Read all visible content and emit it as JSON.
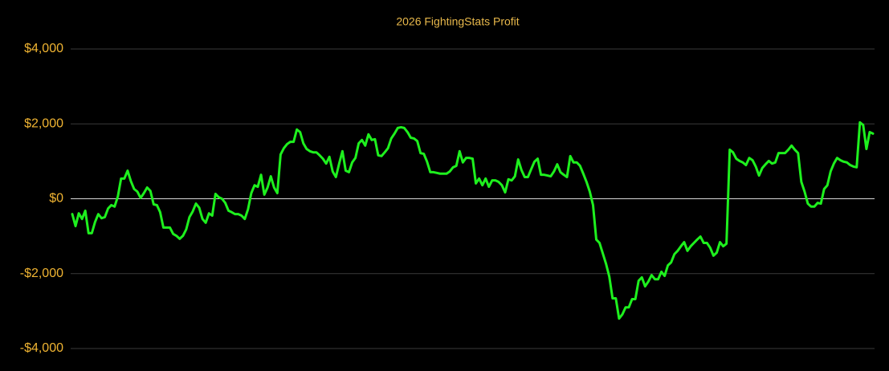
{
  "chart_data": {
    "type": "line",
    "title": "2026 FightingStats Profit",
    "ylim": [
      -4000,
      4000
    ],
    "yticks": [
      {
        "value": 4000,
        "label": "$4,000"
      },
      {
        "value": 2000,
        "label": "$2,000"
      },
      {
        "value": 0,
        "label": "$0"
      },
      {
        "value": -2000,
        "label": "-$2,000"
      },
      {
        "value": -4000,
        "label": "-$4,000"
      }
    ],
    "grid": true,
    "series": [
      {
        "color": "#1ef01e",
        "values": [
          -410,
          -730,
          -390,
          -540,
          -320,
          -920,
          -920,
          -620,
          -410,
          -520,
          -490,
          -260,
          -170,
          -210,
          60,
          540,
          540,
          750,
          470,
          260,
          190,
          20,
          150,
          300,
          210,
          -150,
          -170,
          -360,
          -770,
          -770,
          -770,
          -940,
          -990,
          -1070,
          -990,
          -820,
          -490,
          -340,
          -130,
          -240,
          -540,
          -640,
          -390,
          -450,
          130,
          40,
          0,
          -110,
          -320,
          -360,
          -410,
          -410,
          -450,
          -540,
          -280,
          150,
          360,
          320,
          640,
          110,
          300,
          600,
          300,
          150,
          1180,
          1350,
          1460,
          1520,
          1520,
          1850,
          1780,
          1480,
          1330,
          1270,
          1240,
          1240,
          1160,
          1070,
          940,
          1120,
          730,
          580,
          940,
          1270,
          750,
          710,
          970,
          1090,
          1480,
          1570,
          1420,
          1720,
          1570,
          1590,
          1160,
          1140,
          1240,
          1350,
          1610,
          1740,
          1890,
          1910,
          1890,
          1780,
          1630,
          1610,
          1540,
          1220,
          1200,
          990,
          710,
          710,
          690,
          670,
          670,
          670,
          730,
          840,
          880,
          1270,
          970,
          1090,
          1090,
          1070,
          410,
          540,
          360,
          540,
          320,
          490,
          490,
          450,
          360,
          170,
          520,
          490,
          600,
          1050,
          770,
          580,
          580,
          790,
          990,
          1070,
          640,
          640,
          620,
          600,
          730,
          920,
          710,
          640,
          580,
          1140,
          970,
          970,
          880,
          670,
          450,
          190,
          -170,
          -1090,
          -1180,
          -1460,
          -1740,
          -2080,
          -2660,
          -2660,
          -3200,
          -3090,
          -2900,
          -2900,
          -2680,
          -2680,
          -2190,
          -2100,
          -2340,
          -2210,
          -2040,
          -2150,
          -2150,
          -1950,
          -2060,
          -1780,
          -1700,
          -1480,
          -1390,
          -1270,
          -1160,
          -1390,
          -1270,
          -1180,
          -1090,
          -1010,
          -1180,
          -1180,
          -1310,
          -1520,
          -1440,
          -1160,
          -1270,
          -1200,
          1310,
          1240,
          1070,
          1010,
          970,
          900,
          1090,
          1030,
          860,
          620,
          820,
          920,
          1010,
          940,
          970,
          1220,
          1220,
          1220,
          1310,
          1420,
          1310,
          1220,
          450,
          190,
          -130,
          -210,
          -210,
          -110,
          -130,
          260,
          360,
          730,
          940,
          1090,
          1030,
          990,
          970,
          900,
          860,
          840,
          2040,
          1970,
          1330,
          1780,
          1740
        ]
      }
    ]
  }
}
